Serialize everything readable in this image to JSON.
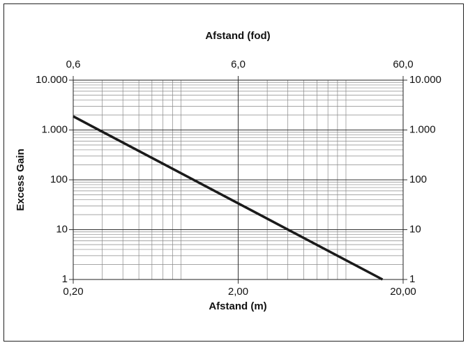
{
  "chart_data": {
    "type": "line",
    "x_label": "Afstand (m)",
    "x2_label": "Afstand (fod)",
    "y_label": "Excess Gain",
    "log_x": true,
    "log_y": true,
    "grid": true,
    "xlim": [
      0.2,
      20
    ],
    "xticks": [
      {
        "value": 0.2,
        "label": "0,20"
      },
      {
        "value": 2,
        "label": "2,00"
      },
      {
        "value": 20,
        "label": "20,00"
      }
    ],
    "x2lim": [
      0.6,
      60
    ],
    "x2ticks": [
      {
        "value": 0.6,
        "label": "0,6"
      },
      {
        "value": 6,
        "label": "6,0"
      },
      {
        "value": 60,
        "label": "60,0"
      }
    ],
    "ylim": [
      1,
      10000
    ],
    "yticks": [
      {
        "value": 10000,
        "label": "10.000"
      },
      {
        "value": 1000,
        "label": "1.000"
      },
      100,
      10,
      1
    ],
    "series": [
      {
        "color": "#1a1a1a",
        "x": [
          0.2,
          15
        ],
        "values": [
          1875,
          1
        ]
      }
    ]
  }
}
